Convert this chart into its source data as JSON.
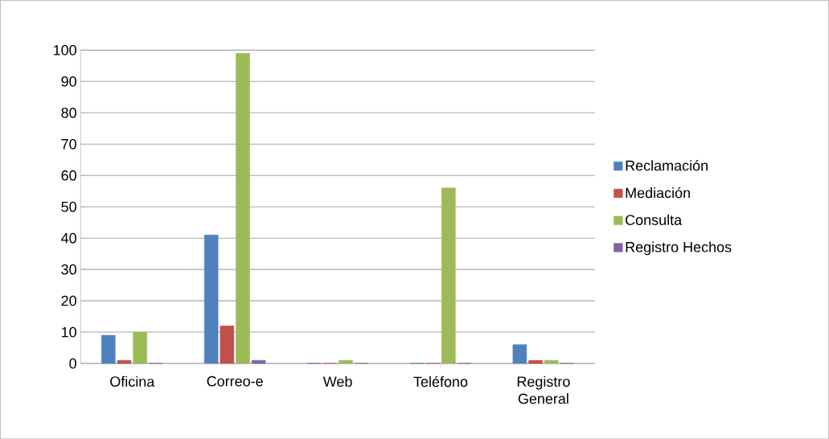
{
  "chart_data": {
    "type": "bar",
    "categories": [
      "Oficina",
      "Correo-e",
      "Web",
      "Teléfono",
      "Registro General"
    ],
    "series": [
      {
        "name": "Reclamación",
        "color": "#4f81bd",
        "values": [
          9,
          41,
          0,
          0,
          6
        ]
      },
      {
        "name": "Mediación",
        "color": "#c0504d",
        "values": [
          1,
          12,
          0,
          0,
          1
        ]
      },
      {
        "name": "Consulta",
        "color": "#9bbb59",
        "values": [
          10,
          99,
          1,
          56,
          1
        ]
      },
      {
        "name": "Registro Hechos",
        "color": "#8064a2",
        "values": [
          0,
          1,
          0,
          0,
          0
        ]
      }
    ],
    "ylim": [
      0,
      100
    ],
    "yticks": [
      0,
      10,
      20,
      30,
      40,
      50,
      60,
      70,
      80,
      90,
      100
    ],
    "grid": "y",
    "legend": "right"
  }
}
